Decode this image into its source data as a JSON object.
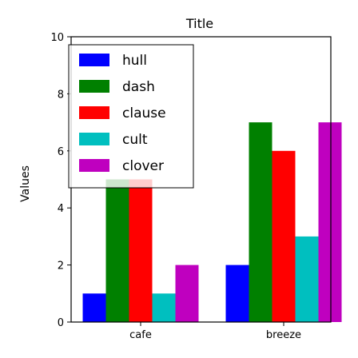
{
  "chart_data": {
    "type": "bar",
    "title": "Title",
    "xlabel": "",
    "ylabel": "Values",
    "ylim": [
      0,
      10
    ],
    "yticks": [
      0,
      2,
      4,
      6,
      8,
      10
    ],
    "grid": false,
    "legend_position": "top-left",
    "categories": [
      "cafe",
      "breeze"
    ],
    "series": [
      {
        "name": "hull",
        "color": "#0000ff",
        "values": [
          1,
          2
        ]
      },
      {
        "name": "dash",
        "color": "#008000",
        "values": [
          5,
          7
        ]
      },
      {
        "name": "clause",
        "color": "#ff0000",
        "values": [
          5,
          6
        ]
      },
      {
        "name": "cult",
        "color": "#00bfbf",
        "values": [
          1,
          3
        ]
      },
      {
        "name": "clover",
        "color": "#bf00bf",
        "values": [
          2,
          7
        ]
      }
    ]
  }
}
